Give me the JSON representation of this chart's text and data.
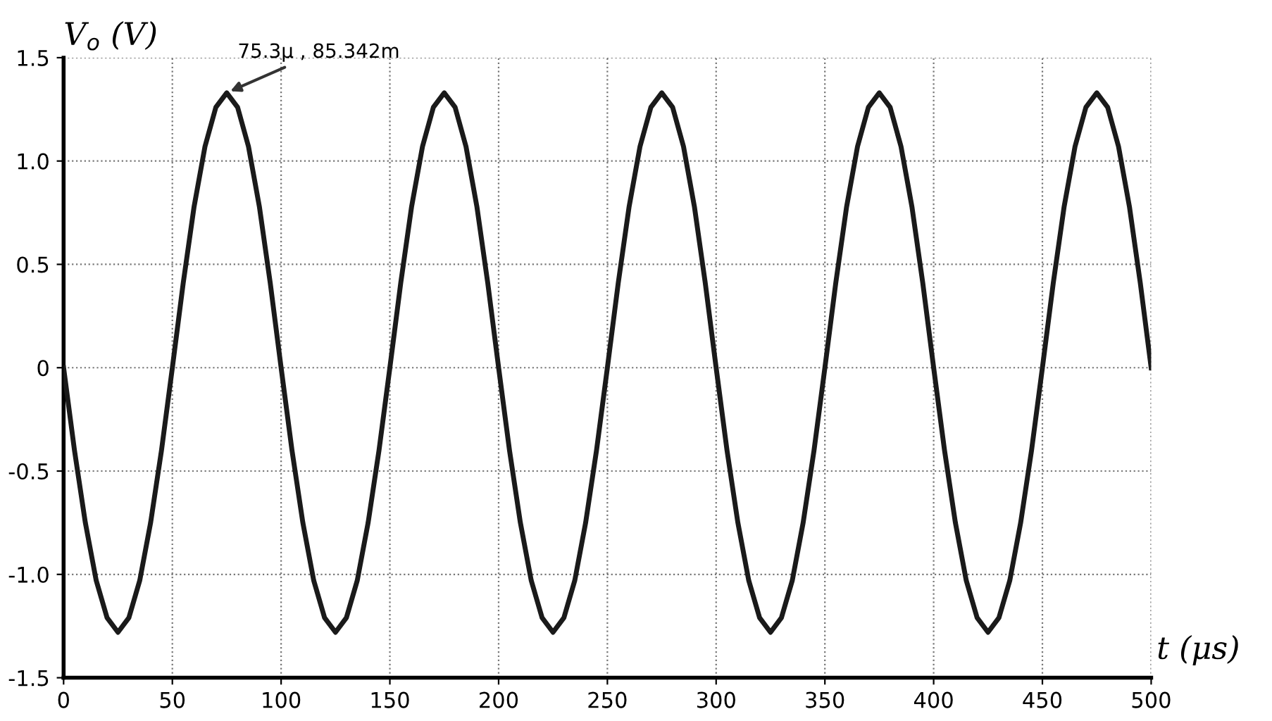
{
  "chart_data": {
    "type": "line",
    "xlabel": "t (μs)",
    "ylabel": "V$_{o}$ (V)",
    "x": [
      0,
      5,
      10,
      15,
      20,
      25,
      30,
      35,
      40,
      45,
      50,
      55,
      60,
      65,
      70,
      75,
      80,
      85,
      90,
      95,
      100,
      105,
      110,
      115,
      120,
      125,
      130,
      135,
      140,
      145,
      150,
      155,
      160,
      165,
      170,
      175,
      180,
      185,
      190,
      195,
      200,
      205,
      210,
      215,
      220,
      225,
      230,
      235,
      240,
      245,
      250,
      255,
      260,
      265,
      270,
      275,
      280,
      285,
      290,
      295,
      300,
      305,
      310,
      315,
      320,
      325,
      330,
      335,
      340,
      345,
      350,
      355,
      360,
      365,
      370,
      375,
      380,
      385,
      390,
      395,
      400,
      405,
      410,
      415,
      420,
      425,
      430,
      435,
      440,
      445,
      450,
      455,
      460,
      465,
      470,
      475,
      480,
      485,
      490,
      495,
      500
    ],
    "series": [
      {
        "color": "#1a1a1a",
        "values": [
          0,
          -0.4,
          -0.75,
          -1.03,
          -1.21,
          -1.28,
          -1.21,
          -1.03,
          -0.75,
          -0.4,
          0,
          0.41,
          0.78,
          1.07,
          1.26,
          1.33,
          1.26,
          1.07,
          0.78,
          0.41,
          0,
          -0.4,
          -0.75,
          -1.03,
          -1.21,
          -1.28,
          -1.21,
          -1.03,
          -0.75,
          -0.4,
          0,
          0.41,
          0.78,
          1.07,
          1.26,
          1.33,
          1.26,
          1.07,
          0.78,
          0.41,
          0,
          -0.4,
          -0.75,
          -1.03,
          -1.21,
          -1.28,
          -1.21,
          -1.03,
          -0.75,
          -0.4,
          0,
          0.41,
          0.78,
          1.07,
          1.26,
          1.33,
          1.26,
          1.07,
          0.78,
          0.41,
          0,
          -0.4,
          -0.75,
          -1.03,
          -1.21,
          -1.28,
          -1.21,
          -1.03,
          -0.75,
          -0.4,
          0,
          0.41,
          0.78,
          1.07,
          1.26,
          1.33,
          1.26,
          1.07,
          0.78,
          0.41,
          0,
          -0.4,
          -0.75,
          -1.03,
          -1.21,
          -1.28,
          -1.21,
          -1.03,
          -0.75,
          -0.4,
          0,
          0.41,
          0.78,
          1.07,
          1.26,
          1.33,
          1.26,
          1.07,
          0.78,
          0.41,
          0
        ]
      }
    ],
    "xlim": [
      0,
      500
    ],
    "xticks": [
      0,
      50,
      100,
      150,
      200,
      250,
      300,
      350,
      400,
      450,
      500
    ],
    "ylim": [
      -1.5,
      1.5
    ],
    "yticks": [
      {
        "value": -1.5,
        "label": "-1.5"
      },
      {
        "value": -1.0,
        "label": "-1.0"
      },
      {
        "value": -0.5,
        "label": "-0.5"
      },
      {
        "value": 0,
        "label": "0"
      },
      {
        "value": 0.5,
        "label": "0.5"
      },
      {
        "value": 1.0,
        "label": "1.0"
      },
      {
        "value": 1.5,
        "label": "1.5"
      }
    ],
    "grid": true,
    "marker": "none",
    "line_style": "solid",
    "annotations": [
      {
        "text": "75.3μ , 85.342m",
        "x": 75,
        "y": 1.33
      }
    ]
  }
}
